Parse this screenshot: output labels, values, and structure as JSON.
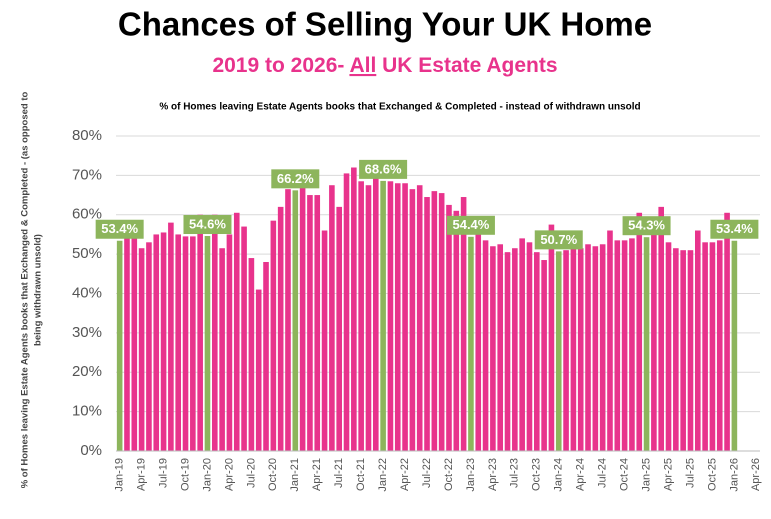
{
  "chart_data": {
    "type": "bar",
    "title": "Chances of Selling Your UK Home",
    "subtitle": [
      "2019 to 2026- ",
      "All",
      " UK Estate Agents"
    ],
    "chart_subtitle": "% of Homes leaving Estate Agents books that Exchanged & Completed - instead of withdrawn unsold",
    "y_label": [
      "% of Homes leaving Estate Agents books that Exchanged & Completed - (as opposed to",
      "being withdrawn unsold)"
    ],
    "categories": [
      "Jan-19",
      null,
      null,
      "Apr-19",
      null,
      null,
      "Jul-19",
      null,
      null,
      "Oct-19",
      null,
      null,
      "Jan-20",
      null,
      null,
      "Apr-20",
      null,
      null,
      "Jul-20",
      null,
      null,
      "Oct-20",
      null,
      null,
      "Jan-21",
      null,
      null,
      "Apr-21",
      null,
      null,
      "Jul-21",
      null,
      null,
      "Oct-21",
      null,
      null,
      "Jan-22",
      null,
      null,
      "Apr-22",
      null,
      null,
      "Jul-22",
      null,
      null,
      "Oct-22",
      null,
      null,
      "Jan-23",
      null,
      null,
      "Apr-23",
      null,
      null,
      "Jul-23",
      null,
      null,
      "Oct-23",
      null,
      null,
      "Jan-24",
      null,
      null,
      "Apr-24",
      null,
      null,
      "Jul-24",
      null,
      null,
      "Oct-24",
      null,
      null,
      "Jan-25",
      null,
      null,
      "Apr-25",
      null,
      null,
      "Jul-25",
      null,
      null,
      "Oct-25",
      null,
      null,
      "Jan-26",
      null,
      null,
      "Apr-26"
    ],
    "values": [
      53.4,
      54,
      54,
      51.5,
      53,
      55,
      55.5,
      58,
      55,
      54.5,
      54.5,
      60,
      54.6,
      60,
      51.5,
      55,
      60.5,
      57,
      49,
      41,
      48,
      58.5,
      62,
      66.5,
      66.2,
      67,
      65,
      65,
      56,
      67.5,
      62,
      70.5,
      72,
      68.5,
      67.5,
      69.5,
      68.6,
      68.5,
      68,
      68,
      66.5,
      67.5,
      64.5,
      66,
      65.5,
      62.5,
      61,
      64.5,
      54.4,
      55,
      53.5,
      52,
      52.5,
      50.5,
      51.5,
      54,
      53,
      50.5,
      48.5,
      57.5,
      50.7,
      51,
      52,
      51.5,
      52.5,
      52,
      52.5,
      56,
      53.5,
      53.5,
      54,
      60.5,
      54.3,
      57,
      62,
      53,
      51.5,
      51,
      51,
      56,
      53,
      53,
      53.5,
      60.5,
      53.4,
      null,
      null,
      null
    ],
    "value_labels": [
      "53.4%",
      null,
      null,
      null,
      null,
      null,
      null,
      null,
      null,
      null,
      null,
      null,
      "54.6%",
      null,
      null,
      null,
      null,
      null,
      null,
      null,
      null,
      null,
      null,
      null,
      "66.2%",
      null,
      null,
      null,
      null,
      null,
      null,
      null,
      null,
      null,
      null,
      null,
      "68.6%",
      null,
      null,
      null,
      null,
      null,
      null,
      null,
      null,
      null,
      null,
      null,
      "54.4%",
      null,
      null,
      null,
      null,
      null,
      null,
      null,
      null,
      null,
      null,
      null,
      "50.7%",
      null,
      null,
      null,
      null,
      null,
      null,
      null,
      null,
      null,
      null,
      null,
      "54.3%",
      null,
      null,
      null,
      null,
      null,
      null,
      null,
      null,
      null,
      null,
      null,
      "53.4%",
      null,
      null,
      null
    ],
    "color": "#e8338c",
    "highlight_color": "#8db55c",
    "ylim": [
      0,
      80
    ],
    "yticks": [
      {
        "value": 0,
        "label": "0%"
      },
      {
        "value": 10,
        "label": "10%"
      },
      {
        "value": 20,
        "label": "20%"
      },
      {
        "value": 30,
        "label": "30%"
      },
      {
        "value": 40,
        "label": "40%"
      },
      {
        "value": 50,
        "label": "50%"
      },
      {
        "value": 60,
        "label": "60%"
      },
      {
        "value": 70,
        "label": "70%"
      },
      {
        "value": 80,
        "label": "80%"
      }
    ],
    "grid": true
  }
}
